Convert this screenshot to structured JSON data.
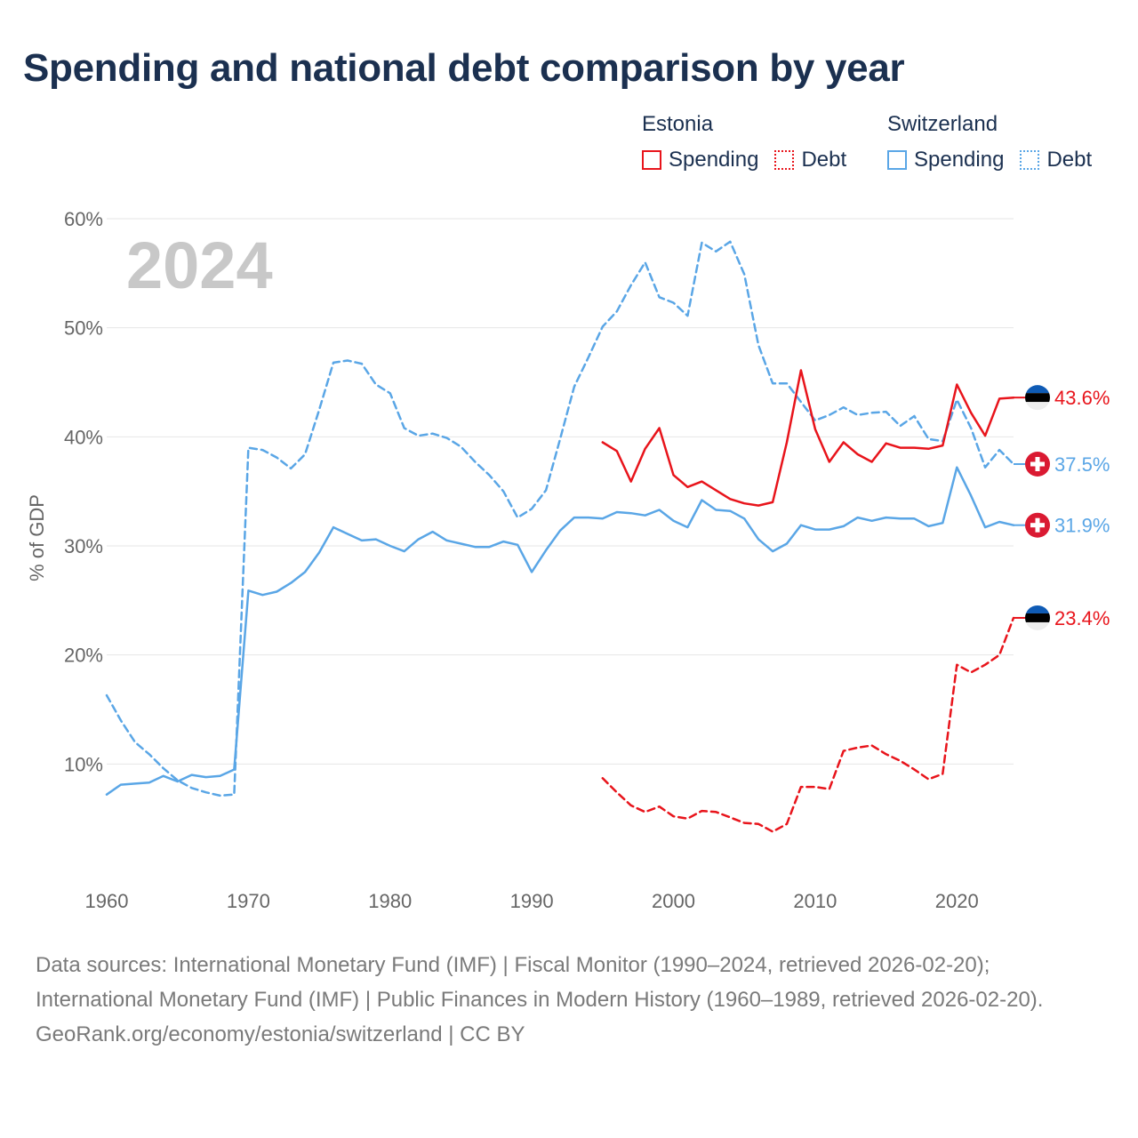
{
  "title": "Spending and national debt comparison by year",
  "legend": {
    "estonia": {
      "name": "Estonia",
      "spending": "Spending",
      "debt": "Debt"
    },
    "switzerland": {
      "name": "Switzerland",
      "spending": "Spending",
      "debt": "Debt"
    }
  },
  "colors": {
    "estonia": "#e8141b",
    "switzerland": "#5aa6e6",
    "title": "#1b3050",
    "year_watermark": "#c8c8c8"
  },
  "chart_data": {
    "type": "line",
    "ylabel": "% of GDP",
    "year_label": "2024",
    "ylim": [
      0,
      60
    ],
    "xlim": [
      1960,
      2024
    ],
    "y_ticks": [
      10,
      20,
      30,
      40,
      50,
      60
    ],
    "y_tick_labels": [
      "10%",
      "20%",
      "30%",
      "40%",
      "50%",
      "60%"
    ],
    "x_ticks": [
      1960,
      1970,
      1980,
      1990,
      2000,
      2010,
      2020
    ],
    "x_tick_labels": [
      "1960",
      "1970",
      "1980",
      "1990",
      "2000",
      "2010",
      "2020"
    ],
    "series": [
      {
        "name": "Switzerland Debt",
        "country": "switzerland",
        "style": "dashed",
        "x": [
          1960,
          1961,
          1962,
          1963,
          1964,
          1965,
          1966,
          1967,
          1968,
          1969,
          1970,
          1971,
          1972,
          1973,
          1974,
          1975,
          1976,
          1977,
          1978,
          1979,
          1980,
          1981,
          1982,
          1983,
          1984,
          1985,
          1986,
          1987,
          1988,
          1989,
          1990,
          1991,
          1992,
          1993,
          1994,
          1995,
          1996,
          1997,
          1998,
          1999,
          2000,
          2001,
          2002,
          2003,
          2004,
          2005,
          2006,
          2007,
          2008,
          2009,
          2010,
          2011,
          2012,
          2013,
          2014,
          2015,
          2016,
          2017,
          2018,
          2019,
          2020,
          2021,
          2022,
          2023,
          2024
        ],
        "values": [
          16.3,
          14.0,
          12.0,
          10.9,
          9.6,
          8.5,
          7.8,
          7.4,
          7.1,
          7.2,
          39.0,
          38.8,
          38.1,
          37.1,
          38.4,
          42.5,
          46.8,
          47.0,
          46.7,
          44.8,
          44.0,
          40.8,
          40.1,
          40.3,
          39.9,
          39.1,
          37.7,
          36.5,
          35.0,
          32.6,
          33.4,
          35.1,
          39.8,
          44.6,
          47.3,
          50.1,
          51.5,
          53.9,
          56.0,
          52.8,
          52.3,
          51.1,
          57.8,
          57.0,
          57.9,
          54.9,
          48.4,
          44.9,
          44.9,
          43.2,
          41.5,
          42.0,
          42.7,
          42.0,
          42.2,
          42.3,
          41.0,
          41.9,
          39.8,
          39.6,
          43.4,
          40.8,
          37.2,
          38.8,
          37.5
        ],
        "end_label": "37.5%"
      },
      {
        "name": "Switzerland Spending",
        "country": "switzerland",
        "style": "solid",
        "x": [
          1960,
          1961,
          1962,
          1963,
          1964,
          1965,
          1966,
          1967,
          1968,
          1969,
          1970,
          1971,
          1972,
          1973,
          1974,
          1975,
          1976,
          1977,
          1978,
          1979,
          1980,
          1981,
          1982,
          1983,
          1984,
          1985,
          1986,
          1987,
          1988,
          1989,
          1990,
          1991,
          1992,
          1993,
          1994,
          1995,
          1996,
          1997,
          1998,
          1999,
          2000,
          2001,
          2002,
          2003,
          2004,
          2005,
          2006,
          2007,
          2008,
          2009,
          2010,
          2011,
          2012,
          2013,
          2014,
          2015,
          2016,
          2017,
          2018,
          2019,
          2020,
          2021,
          2022,
          2023,
          2024
        ],
        "values": [
          7.2,
          8.1,
          8.2,
          8.3,
          8.9,
          8.4,
          9.0,
          8.8,
          8.9,
          9.5,
          25.9,
          25.5,
          25.8,
          26.6,
          27.6,
          29.4,
          31.7,
          31.1,
          30.5,
          30.6,
          30.0,
          29.5,
          30.6,
          31.3,
          30.5,
          30.2,
          29.9,
          29.9,
          30.4,
          30.1,
          27.6,
          29.6,
          31.4,
          32.6,
          32.6,
          32.5,
          33.1,
          33.0,
          32.8,
          33.3,
          32.3,
          31.7,
          34.2,
          33.3,
          33.2,
          32.5,
          30.6,
          29.5,
          30.2,
          31.9,
          31.5,
          31.5,
          31.8,
          32.6,
          32.3,
          32.6,
          32.5,
          32.5,
          31.8,
          32.1,
          37.2,
          34.6,
          31.7,
          32.2,
          31.9
        ],
        "end_label": "31.9%"
      },
      {
        "name": "Estonia Spending",
        "country": "estonia",
        "style": "solid",
        "x": [
          1995,
          1996,
          1997,
          1998,
          1999,
          2000,
          2001,
          2002,
          2003,
          2004,
          2005,
          2006,
          2007,
          2008,
          2009,
          2010,
          2011,
          2012,
          2013,
          2014,
          2015,
          2016,
          2017,
          2018,
          2019,
          2020,
          2021,
          2022,
          2023,
          2024
        ],
        "values": [
          39.5,
          38.7,
          35.9,
          38.9,
          40.8,
          36.5,
          35.4,
          35.9,
          35.1,
          34.3,
          33.9,
          33.7,
          34.0,
          39.5,
          46.1,
          40.7,
          37.7,
          39.5,
          38.4,
          37.7,
          39.4,
          39.0,
          39.0,
          38.9,
          39.2,
          44.8,
          42.2,
          40.1,
          43.5,
          43.6
        ],
        "end_label": "43.6%"
      },
      {
        "name": "Estonia Debt",
        "country": "estonia",
        "style": "dashed",
        "x": [
          1995,
          1996,
          1997,
          1998,
          1999,
          2000,
          2001,
          2002,
          2003,
          2004,
          2005,
          2006,
          2007,
          2008,
          2009,
          2010,
          2011,
          2012,
          2013,
          2014,
          2015,
          2016,
          2017,
          2018,
          2019,
          2020,
          2021,
          2022,
          2023,
          2024
        ],
        "values": [
          8.7,
          7.4,
          6.2,
          5.6,
          6.1,
          5.2,
          5.0,
          5.7,
          5.6,
          5.1,
          4.6,
          4.5,
          3.8,
          4.5,
          7.9,
          7.9,
          7.7,
          11.2,
          11.5,
          11.7,
          10.9,
          10.3,
          9.5,
          8.6,
          9.1,
          19.1,
          18.4,
          19.1,
          20.0,
          23.4
        ],
        "end_label": "23.4%"
      }
    ]
  },
  "footer": {
    "sources": "Data sources: International Monetary Fund (IMF) | Fiscal Monitor (1990–2024, retrieved 2026-02-20); International Monetary Fund (IMF) | Public Finances in Modern History (1960–1989, retrieved 2026-02-20).",
    "credit": "GeoRank.org/economy/estonia/switzerland | CC BY"
  }
}
